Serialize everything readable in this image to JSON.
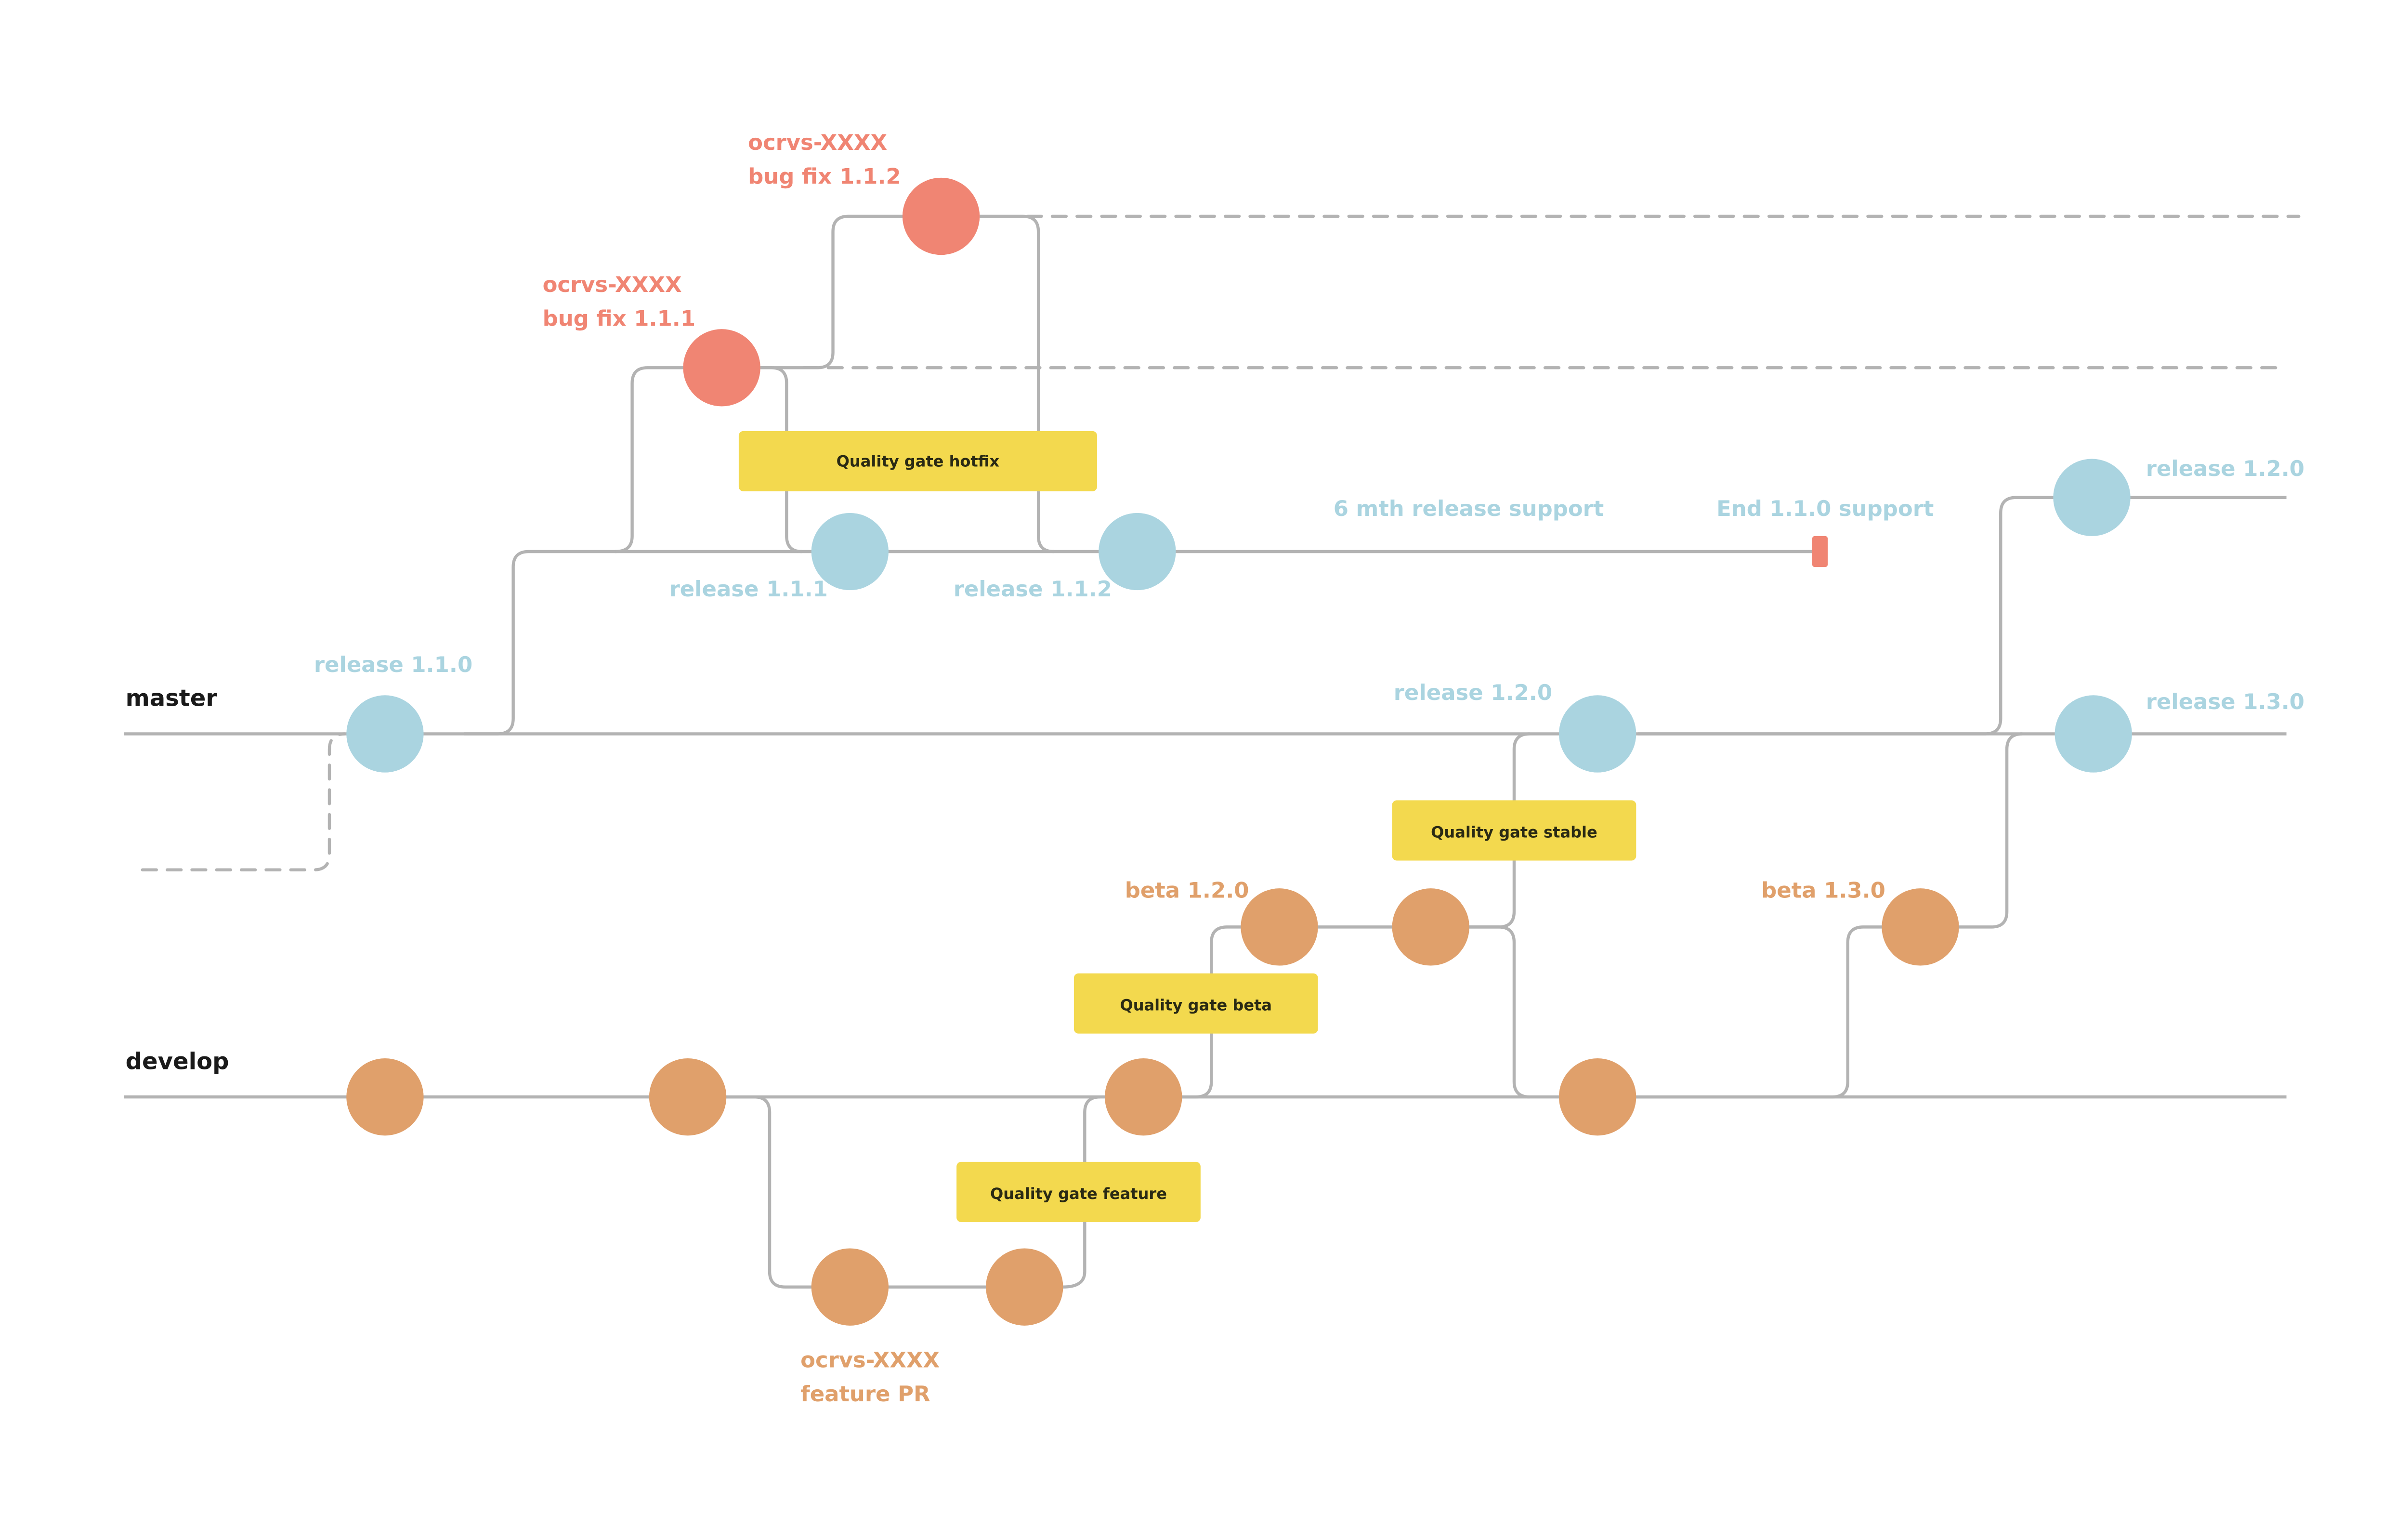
{
  "colors": {
    "hotfix": "#F08573",
    "release": "#AAD4E0",
    "develop": "#E0A06B",
    "gate": "#F3D94E",
    "line": "#B3B3B3"
  },
  "branches": {
    "master": "master",
    "develop": "develop"
  },
  "labels": {
    "hotfix_112": [
      "ocrvs-XXXX",
      "bug fix 1.1.2"
    ],
    "hotfix_111": [
      "ocrvs-XXXX",
      "bug fix 1.1.1"
    ],
    "release_110": "release 1.1.0",
    "release_111": "release 1.1.1",
    "release_112": "release 1.1.2",
    "support": "6 mth release support",
    "end_support": "End 1.1.0 support",
    "release_120_top": "release 1.2.0",
    "release_120": "release 1.2.0",
    "release_130": "release 1.3.0",
    "beta_120": "beta 1.2.0",
    "beta_130": "beta 1.3.0",
    "feature": [
      "ocrvs-XXXX",
      "feature PR"
    ]
  },
  "gates": {
    "hotfix": "Quality gate  hotfix",
    "stable": "Quality gate  stable",
    "beta": "Quality gate  beta",
    "feature": "Quality gate  feature"
  }
}
